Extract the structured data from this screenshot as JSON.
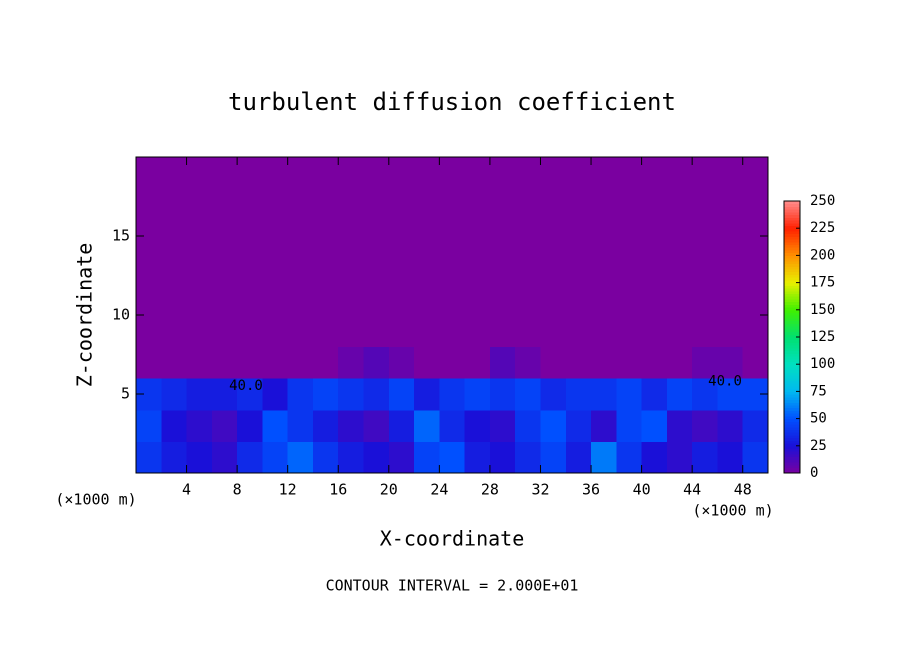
{
  "chart_data": {
    "type": "heatmap",
    "title": "turbulent diffusion coefficient",
    "x_label": "X-coordinate",
    "y_label": "Z-coordinate",
    "x_unit_left": "(×1000 m)",
    "x_unit_right": "(×1000 m)",
    "footnote": "CONTOUR INTERVAL = 2.000E+01",
    "xlim": [
      0,
      50
    ],
    "ylim": [
      0,
      20
    ],
    "xticks": [
      4,
      8,
      12,
      16,
      20,
      24,
      28,
      32,
      36,
      40,
      44,
      48
    ],
    "yticks": [
      5,
      10,
      15
    ],
    "clim": [
      0,
      250
    ],
    "cticks": [
      0,
      25,
      50,
      75,
      100,
      125,
      150,
      175,
      200,
      225,
      250
    ],
    "colormap": [
      "#7a00a0",
      "#1a10d8",
      "#0050ff",
      "#00b8f0",
      "#00e0c0",
      "#00e070",
      "#40f000",
      "#e8f000",
      "#ff9000",
      "#ff2000",
      "#ff8c8c"
    ],
    "contour_labels": [
      {
        "text": "40.0",
        "x": 8.7,
        "z": 5.5
      },
      {
        "text": "40.0",
        "x": 46.6,
        "z": 5.8
      }
    ],
    "values": [
      [
        40,
        30,
        25,
        20,
        35,
        45,
        55,
        40,
        30,
        25,
        20,
        45,
        50,
        30,
        25,
        35,
        45,
        30,
        60,
        40,
        25,
        20,
        30,
        25,
        40
      ],
      [
        45,
        25,
        20,
        15,
        25,
        50,
        40,
        30,
        20,
        15,
        30,
        55,
        35,
        25,
        20,
        40,
        50,
        35,
        20,
        45,
        50,
        20,
        15,
        20,
        35
      ],
      [
        40,
        35,
        30,
        30,
        35,
        25,
        40,
        45,
        40,
        35,
        45,
        30,
        40,
        45,
        40,
        45,
        35,
        40,
        40,
        45,
        35,
        45,
        40,
        45,
        45
      ],
      [
        0,
        0,
        0,
        0,
        0,
        0,
        0,
        0,
        5,
        10,
        5,
        0,
        0,
        0,
        10,
        5,
        0,
        0,
        0,
        0,
        0,
        0,
        5,
        5,
        0
      ],
      [
        0,
        0,
        0,
        0,
        0,
        0,
        0,
        0,
        0,
        0,
        0,
        0,
        0,
        0,
        0,
        0,
        0,
        0,
        0,
        0,
        0,
        0,
        0,
        0,
        0
      ],
      [
        0,
        0,
        0,
        0,
        0,
        0,
        0,
        0,
        0,
        0,
        0,
        0,
        0,
        0,
        0,
        0,
        0,
        0,
        0,
        0,
        0,
        0,
        0,
        0,
        0
      ],
      [
        0,
        0,
        0,
        0,
        0,
        0,
        0,
        0,
        0,
        0,
        0,
        0,
        0,
        0,
        0,
        0,
        0,
        0,
        0,
        0,
        0,
        0,
        0,
        0,
        0
      ],
      [
        0,
        0,
        0,
        0,
        0,
        0,
        0,
        0,
        0,
        0,
        0,
        0,
        0,
        0,
        0,
        0,
        0,
        0,
        0,
        0,
        0,
        0,
        0,
        0,
        0
      ],
      [
        0,
        0,
        0,
        0,
        0,
        0,
        0,
        0,
        0,
        0,
        0,
        0,
        0,
        0,
        0,
        0,
        0,
        0,
        0,
        0,
        0,
        0,
        0,
        0,
        0
      ],
      [
        0,
        0,
        0,
        0,
        0,
        0,
        0,
        0,
        0,
        0,
        0,
        0,
        0,
        0,
        0,
        0,
        0,
        0,
        0,
        0,
        0,
        0,
        0,
        0,
        0
      ]
    ]
  }
}
